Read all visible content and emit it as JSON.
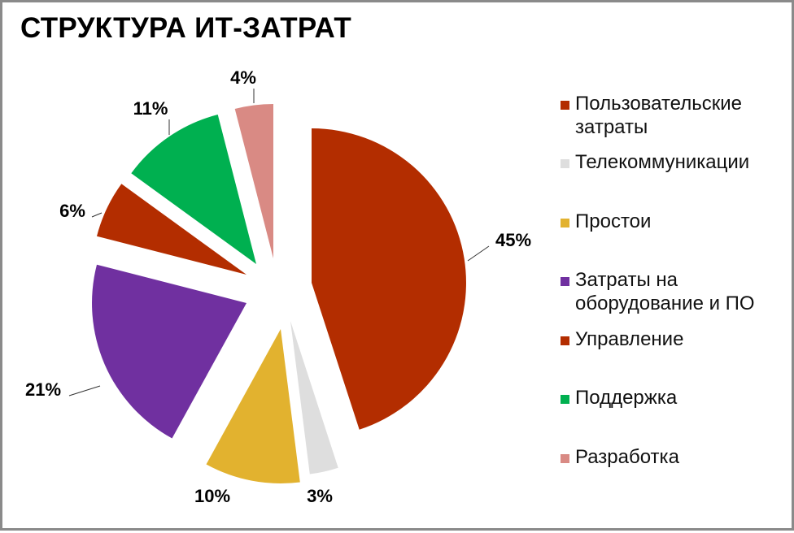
{
  "title": "СТРУКТУРА ИТ-ЗАТРАТ",
  "chart_data": {
    "type": "pie",
    "title": "СТРУКТУРА ИТ-ЗАТРАТ",
    "exploded": true,
    "start_angle_deg": 0,
    "direction": "clockwise",
    "slices": [
      {
        "label": "Пользовательские затраты",
        "value": 45,
        "display": "45%",
        "color": "#b32d00"
      },
      {
        "label": "Телекоммуникации",
        "value": 3,
        "display": "3%",
        "color": "#dedede"
      },
      {
        "label": "Простои",
        "value": 10,
        "display": "10%",
        "color": "#e2b22f"
      },
      {
        "label": "Затраты на оборудование и ПО",
        "value": 21,
        "display": "21%",
        "color": "#7030a0"
      },
      {
        "label": "Управление",
        "value": 6,
        "display": "6%",
        "color": "#b32d00"
      },
      {
        "label": "Поддержка",
        "value": 11,
        "display": "11%",
        "color": "#00b050"
      },
      {
        "label": "Разработка",
        "value": 4,
        "display": "4%",
        "color": "#d98a84"
      }
    ],
    "legend_position": "right"
  },
  "legend": [
    {
      "label": "Пользовательские затраты",
      "line1": "Пользовательские",
      "line2": "затраты",
      "color": "#b32d00"
    },
    {
      "label": "Телекоммуникации",
      "line1": "Телекоммуникации",
      "line2": "",
      "color": "#dedede"
    },
    {
      "label": "Простои",
      "line1": "Простои",
      "line2": "",
      "color": "#e2b22f"
    },
    {
      "label": "Затраты на оборудование и ПО",
      "line1": "Затраты  на",
      "line2": "оборудование и ПО",
      "color": "#7030a0"
    },
    {
      "label": "Управление",
      "line1": "Управление",
      "line2": "",
      "color": "#b32d00"
    },
    {
      "label": "Поддержка",
      "line1": "Поддержка",
      "line2": "",
      "color": "#00b050"
    },
    {
      "label": "Разработка",
      "line1": "Разработка",
      "line2": "",
      "color": "#d98a84"
    }
  ]
}
